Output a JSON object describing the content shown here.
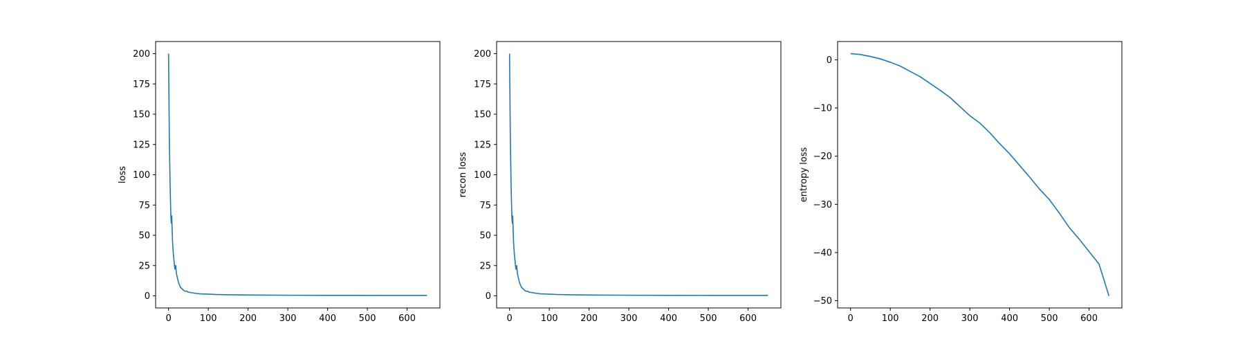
{
  "chart_data": [
    {
      "type": "line",
      "title": "",
      "xlabel": "",
      "ylabel": "loss",
      "xlim": [
        -32.5,
        682.5
      ],
      "ylim": [
        -10,
        210
      ],
      "xticks": [
        0,
        100,
        200,
        300,
        400,
        500,
        600
      ],
      "yticks": [
        0,
        25,
        50,
        75,
        100,
        125,
        150,
        175,
        200
      ],
      "color": "#1f77b4",
      "series": [
        {
          "x": [
            0,
            2,
            4,
            6,
            7,
            8,
            10,
            12,
            14,
            16,
            18,
            20,
            25,
            30,
            35,
            40,
            45,
            50,
            60,
            70,
            80,
            100,
            120,
            150,
            200,
            300,
            400,
            500,
            600,
            650
          ],
          "y": [
            200,
            130,
            90,
            64,
            60,
            66,
            45,
            35,
            28,
            22,
            25,
            18,
            11,
            7,
            5.5,
            4,
            3.8,
            3,
            2.5,
            2,
            1.6,
            1.4,
            1.1,
            0.9,
            0.7,
            0.5,
            0.4,
            0.35,
            0.3,
            0.3
          ]
        }
      ]
    },
    {
      "type": "line",
      "title": "",
      "xlabel": "",
      "ylabel": "recon loss",
      "xlim": [
        -32.5,
        682.5
      ],
      "ylim": [
        -10,
        210
      ],
      "xticks": [
        0,
        100,
        200,
        300,
        400,
        500,
        600
      ],
      "yticks": [
        0,
        25,
        50,
        75,
        100,
        125,
        150,
        175,
        200
      ],
      "color": "#1f77b4",
      "series": [
        {
          "x": [
            0,
            2,
            4,
            6,
            7,
            8,
            10,
            12,
            14,
            16,
            18,
            20,
            25,
            30,
            35,
            40,
            45,
            50,
            60,
            70,
            80,
            100,
            120,
            150,
            200,
            300,
            400,
            500,
            600,
            650
          ],
          "y": [
            200,
            130,
            90,
            64,
            60,
            66,
            45,
            35,
            28,
            22,
            25,
            18,
            11,
            7,
            5.5,
            4,
            3.8,
            3,
            2.5,
            2,
            1.6,
            1.4,
            1.1,
            0.9,
            0.7,
            0.5,
            0.4,
            0.35,
            0.3,
            0.3
          ]
        }
      ]
    },
    {
      "type": "line",
      "title": "",
      "xlabel": "",
      "ylabel": "entropy loss",
      "xlim": [
        -32.5,
        682.5
      ],
      "ylim": [
        -51.5,
        3.8
      ],
      "xticks": [
        0,
        100,
        200,
        300,
        400,
        500,
        600
      ],
      "yticks": [
        0,
        -10,
        -20,
        -30,
        -40,
        -50
      ],
      "color": "#1f77b4",
      "series": [
        {
          "x": [
            0,
            25,
            50,
            75,
            100,
            125,
            150,
            175,
            200,
            225,
            250,
            275,
            300,
            325,
            350,
            375,
            400,
            425,
            450,
            475,
            500,
            525,
            550,
            575,
            600,
            625,
            650
          ],
          "y": [
            1.3,
            1.1,
            0.7,
            0.2,
            -0.5,
            -1.3,
            -2.4,
            -3.5,
            -4.9,
            -6.3,
            -7.8,
            -9.7,
            -11.6,
            -13.1,
            -15.1,
            -17.4,
            -19.5,
            -21.9,
            -24.3,
            -26.8,
            -29.0,
            -31.8,
            -34.8,
            -37.2,
            -39.8,
            -42.4,
            -49.0
          ]
        }
      ]
    }
  ]
}
